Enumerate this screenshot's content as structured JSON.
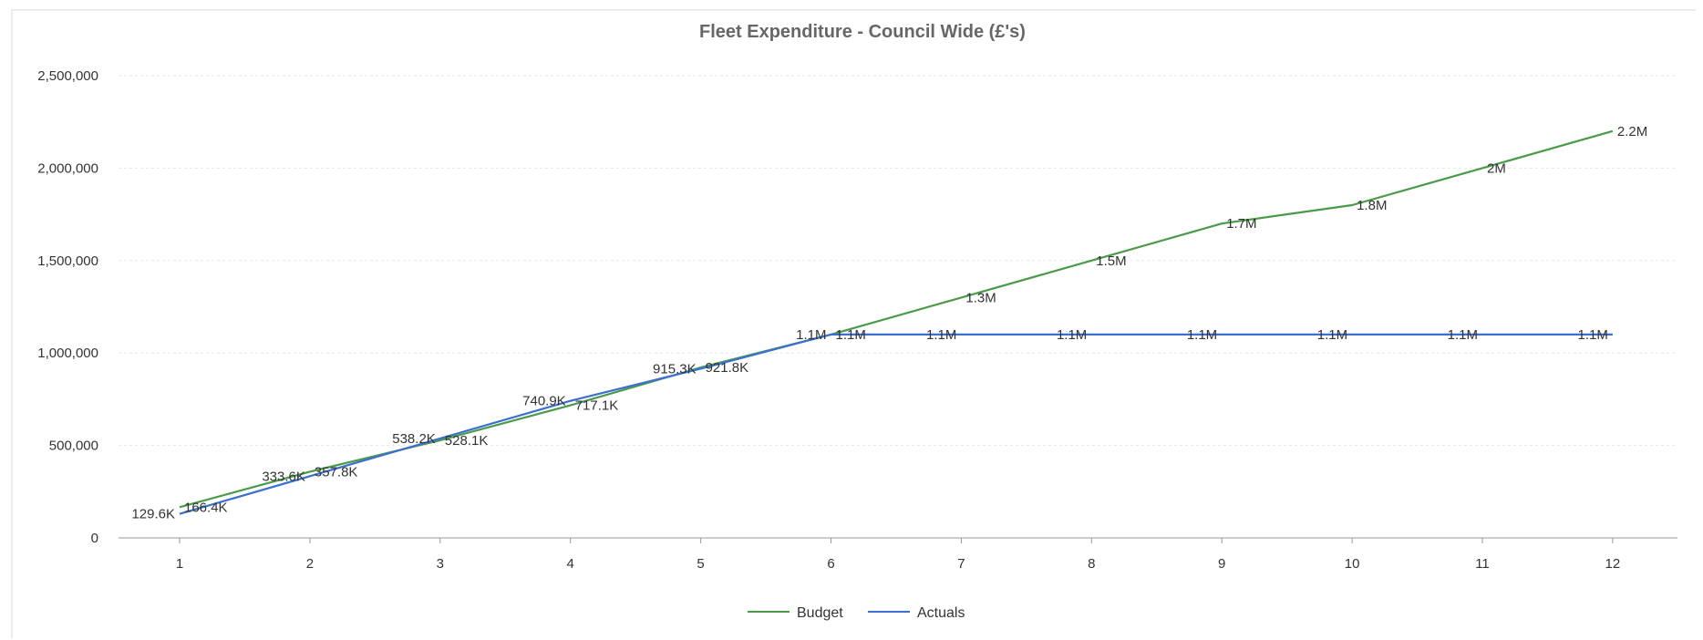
{
  "chart_data": {
    "type": "line",
    "title": "Fleet Expenditure - Council Wide (£'s)",
    "xlabel": "",
    "ylabel": "",
    "x": [
      "1",
      "2",
      "3",
      "4",
      "5",
      "6",
      "7",
      "8",
      "9",
      "10",
      "11",
      "12"
    ],
    "ylim": [
      0,
      2500000
    ],
    "yticks": [
      0,
      500000,
      1000000,
      1500000,
      2000000,
      2500000
    ],
    "ytick_labels": [
      "0",
      "500,000",
      "1,000,000",
      "1,500,000",
      "2,000,000",
      "2,500,000"
    ],
    "grid": true,
    "legend_position": "bottom",
    "series": [
      {
        "name": "Budget",
        "color": "#4a9a4a",
        "values": [
          166400,
          357800,
          528100,
          717100,
          921800,
          1100000,
          1300000,
          1500000,
          1700000,
          1800000,
          2000000,
          2200000
        ],
        "labels": [
          "166.4K",
          "357.8K",
          "528.1K",
          "717.1K",
          "921.8K",
          "1.1M",
          "1.3M",
          "1.5M",
          "1.7M",
          "1.8M",
          "2M",
          "2.2M"
        ]
      },
      {
        "name": "Actuals",
        "color": "#3b6fd1",
        "values": [
          129600,
          333600,
          538200,
          740900,
          915300,
          1100000,
          1100000,
          1100000,
          1100000,
          1100000,
          1100000,
          1100000
        ],
        "labels": [
          "129.6K",
          "333.6K",
          "538.2K",
          "740.9K",
          "915.3K",
          "1.1M",
          "1.1M",
          "1.1M",
          "1.1M",
          "1.1M",
          "1.1M",
          "1.1M"
        ]
      }
    ]
  }
}
